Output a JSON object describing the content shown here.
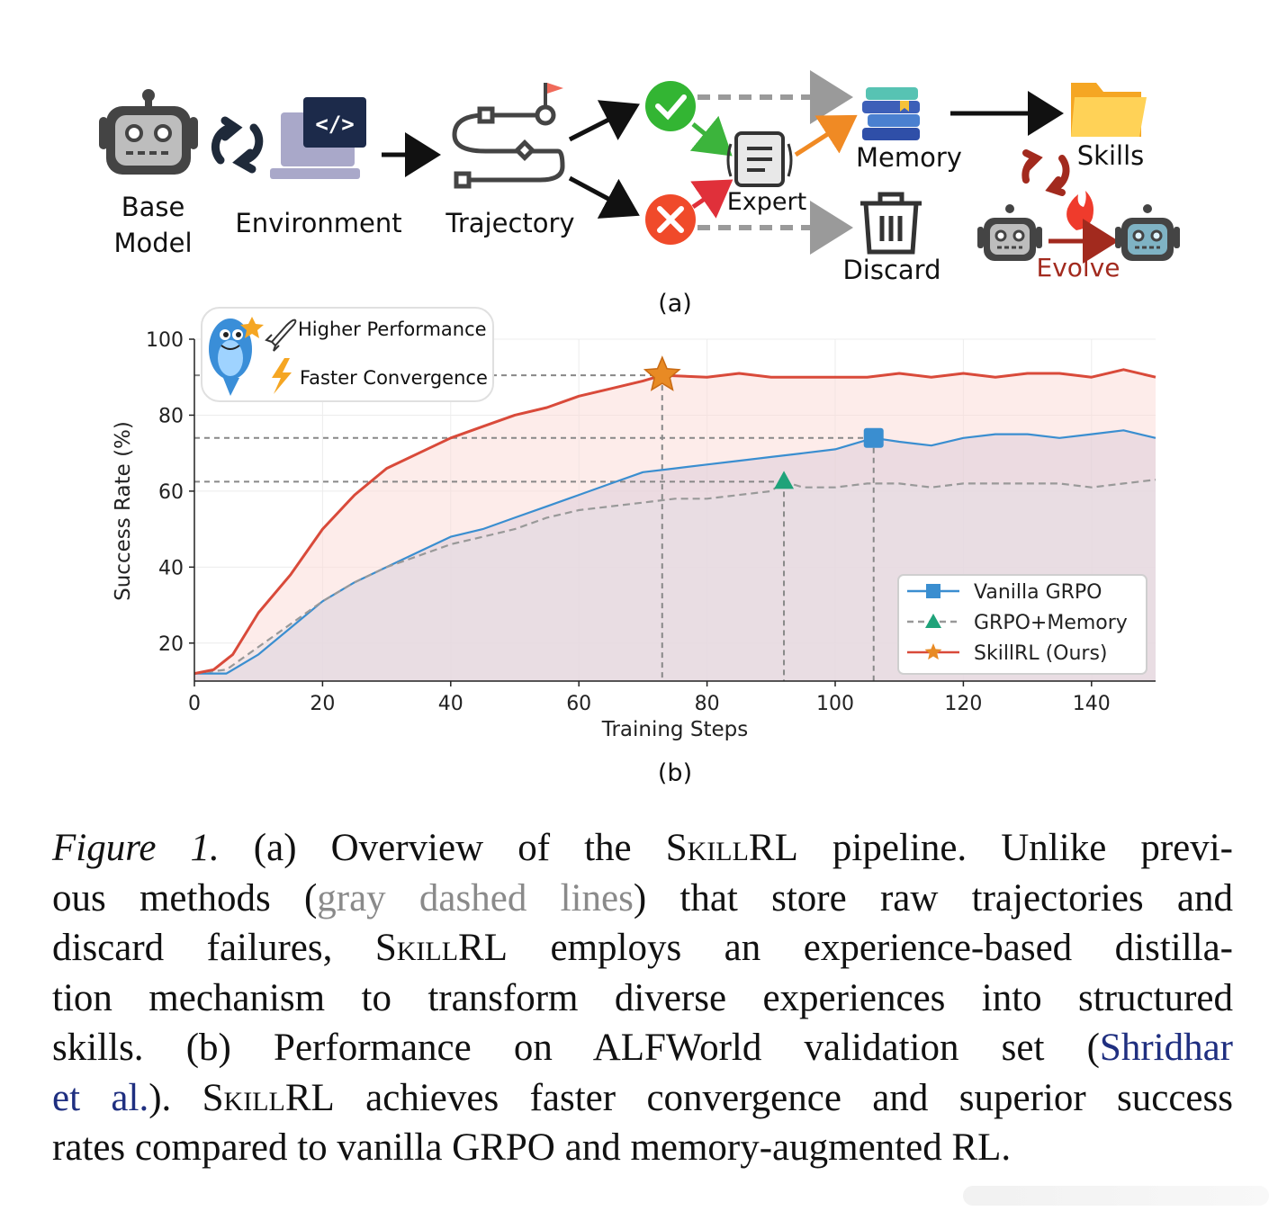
{
  "panel_a": {
    "nodes": {
      "base_model": [
        "Base",
        "Model"
      ],
      "environment": "Environment",
      "trajectory": "Trajectory",
      "expert": "Expert",
      "memory": "Memory",
      "discard": "Discard",
      "skills": "Skills",
      "evolve": "Evolve"
    },
    "code_glyph": "</>",
    "label": "(a)"
  },
  "panel_b_label": "(b)",
  "callout": {
    "line1": "Higher Performance",
    "line2": "Faster Convergence"
  },
  "chart_data": {
    "type": "line",
    "xlabel": "Training Steps",
    "ylabel": "Success Rate (%)",
    "xlim": [
      0,
      150
    ],
    "ylim": [
      10,
      100
    ],
    "xticks": [
      0,
      20,
      40,
      60,
      80,
      100,
      120,
      140
    ],
    "yticks": [
      20,
      40,
      60,
      80,
      100
    ],
    "legend_position": "lower-right",
    "series": [
      {
        "name": "Vanilla GRPO",
        "color": "#3a8ed0",
        "marker": "square",
        "highlight": {
          "x": 106,
          "y": 74
        },
        "points": [
          [
            0,
            12
          ],
          [
            5,
            12
          ],
          [
            10,
            17
          ],
          [
            15,
            24
          ],
          [
            20,
            31
          ],
          [
            25,
            36
          ],
          [
            30,
            40
          ],
          [
            35,
            44
          ],
          [
            40,
            48
          ],
          [
            45,
            50
          ],
          [
            50,
            53
          ],
          [
            55,
            56
          ],
          [
            60,
            59
          ],
          [
            65,
            62
          ],
          [
            70,
            65
          ],
          [
            75,
            66
          ],
          [
            80,
            67
          ],
          [
            85,
            68
          ],
          [
            90,
            69
          ],
          [
            95,
            70
          ],
          [
            100,
            71
          ],
          [
            106,
            74
          ],
          [
            110,
            73
          ],
          [
            115,
            72
          ],
          [
            120,
            74
          ],
          [
            125,
            75
          ],
          [
            130,
            75
          ],
          [
            135,
            74
          ],
          [
            140,
            75
          ],
          [
            145,
            76
          ],
          [
            150,
            74
          ]
        ]
      },
      {
        "name": "GRPO+Memory",
        "color": "#999999",
        "marker": "triangle",
        "highlight": {
          "x": 92,
          "y": 62.5
        },
        "points": [
          [
            0,
            12
          ],
          [
            5,
            13
          ],
          [
            10,
            19
          ],
          [
            15,
            25
          ],
          [
            20,
            31
          ],
          [
            25,
            36
          ],
          [
            30,
            40
          ],
          [
            35,
            43
          ],
          [
            40,
            46
          ],
          [
            45,
            48
          ],
          [
            50,
            50
          ],
          [
            55,
            53
          ],
          [
            60,
            55
          ],
          [
            65,
            56
          ],
          [
            70,
            57
          ],
          [
            75,
            58
          ],
          [
            80,
            58
          ],
          [
            85,
            59
          ],
          [
            90,
            60
          ],
          [
            92,
            62.5
          ],
          [
            95,
            61
          ],
          [
            100,
            61
          ],
          [
            105,
            62
          ],
          [
            110,
            62
          ],
          [
            115,
            61
          ],
          [
            120,
            62
          ],
          [
            125,
            62
          ],
          [
            130,
            62
          ],
          [
            135,
            62
          ],
          [
            140,
            61
          ],
          [
            145,
            62
          ],
          [
            150,
            63
          ]
        ]
      },
      {
        "name": "SkillRL (Ours)",
        "color": "#d94a3a",
        "marker": "star",
        "highlight": {
          "x": 73,
          "y": 90.5
        },
        "points": [
          [
            0,
            12
          ],
          [
            3,
            13
          ],
          [
            6,
            17
          ],
          [
            10,
            28
          ],
          [
            15,
            38
          ],
          [
            20,
            50
          ],
          [
            25,
            59
          ],
          [
            30,
            66
          ],
          [
            35,
            70
          ],
          [
            40,
            74
          ],
          [
            45,
            77
          ],
          [
            50,
            80
          ],
          [
            55,
            82
          ],
          [
            60,
            85
          ],
          [
            65,
            87
          ],
          [
            70,
            89
          ],
          [
            73,
            90.5
          ],
          [
            80,
            90
          ],
          [
            85,
            91
          ],
          [
            90,
            90
          ],
          [
            95,
            90
          ],
          [
            100,
            90
          ],
          [
            105,
            90
          ],
          [
            110,
            91
          ],
          [
            115,
            90
          ],
          [
            120,
            91
          ],
          [
            125,
            90
          ],
          [
            130,
            91
          ],
          [
            135,
            91
          ],
          [
            140,
            90
          ],
          [
            145,
            92
          ],
          [
            150,
            90
          ]
        ]
      }
    ]
  },
  "caption": {
    "lines": [
      [
        "Figure 1.",
        " (a) Overview of the ",
        "SkillRL",
        " pipeline. Unlike previ-"
      ],
      [
        "ous methods (",
        "gray dashed lines",
        ") that store raw trajectories and"
      ],
      [
        "discard failures, ",
        "SkillRL",
        " employs an experience-based distilla-"
      ],
      [
        "tion mechanism to transform diverse experiences into structured"
      ],
      [
        "skills.  (b) Performance on ALFWorld validation set (",
        "Shridhar"
      ],
      [
        "et al.",
        "). ",
        "SkillRL",
        " achieves faster convergence and superior success"
      ],
      [
        "rates compared to vanilla GRPO and memory-augmented RL."
      ]
    ]
  }
}
